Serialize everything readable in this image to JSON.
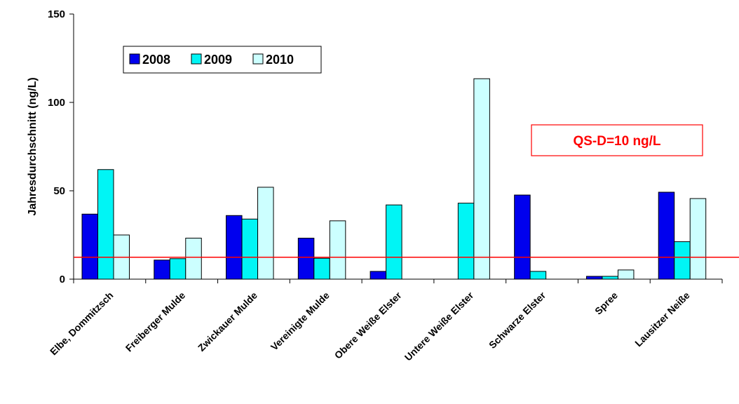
{
  "chart_data": {
    "type": "bar",
    "ylabel": "Jahresdurchschnitt  (ng/L)",
    "xlabel": "",
    "ylim": [
      0,
      150
    ],
    "yticks": [
      0,
      50,
      100,
      150
    ],
    "categories": [
      "Elbe, Dommitzsch",
      "Freiberger Mulde",
      "Zwickauer Mulde",
      "Vereinigte Mulde",
      "Obere Weiße Elster",
      "Untere Weiße Elster",
      "Schwarze Elster",
      "Spree",
      "Lausitzer Neiße"
    ],
    "series": [
      {
        "name": "2008",
        "color": "#0000ee",
        "values": [
          36.8,
          10.8,
          36.0,
          23.2,
          4.4,
          null,
          47.6,
          1.6,
          49.2
        ]
      },
      {
        "name": "2009",
        "color": "#00f5f5",
        "values": [
          62.0,
          11.6,
          34.0,
          11.8,
          42.0,
          43.0,
          4.4,
          1.6,
          21.2
        ]
      },
      {
        "name": "2010",
        "color": "#ccffff",
        "values": [
          25.0,
          23.2,
          52.0,
          33.0,
          null,
          113.4,
          null,
          5.2,
          45.6
        ]
      }
    ],
    "reference_line": {
      "value": 12.4,
      "label": "QS-D=10 ng/L",
      "color": "#ff0000"
    },
    "grid": false,
    "legend_position": "top-left"
  }
}
